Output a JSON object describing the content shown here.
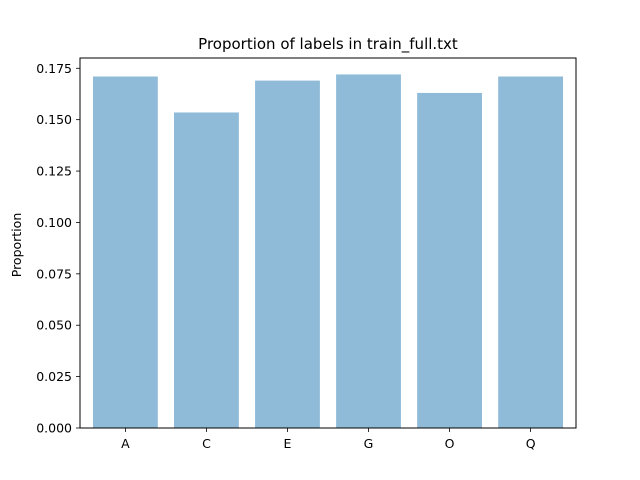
{
  "chart_data": {
    "type": "bar",
    "title": "Proportion of labels in train_full.txt",
    "xlabel": "",
    "ylabel": "Proportion",
    "categories": [
      "A",
      "C",
      "E",
      "G",
      "O",
      "Q"
    ],
    "values": [
      0.171,
      0.1535,
      0.169,
      0.172,
      0.163,
      0.171
    ],
    "ylim": [
      0,
      0.18
    ],
    "yticks": [
      0.0,
      0.025,
      0.05,
      0.075,
      0.1,
      0.125,
      0.15,
      0.175
    ],
    "ytick_labels": [
      "0.000",
      "0.025",
      "0.050",
      "0.075",
      "0.100",
      "0.125",
      "0.150",
      "0.175"
    ],
    "bar_color": "#8fbbd9",
    "grid": false,
    "legend": "none"
  }
}
